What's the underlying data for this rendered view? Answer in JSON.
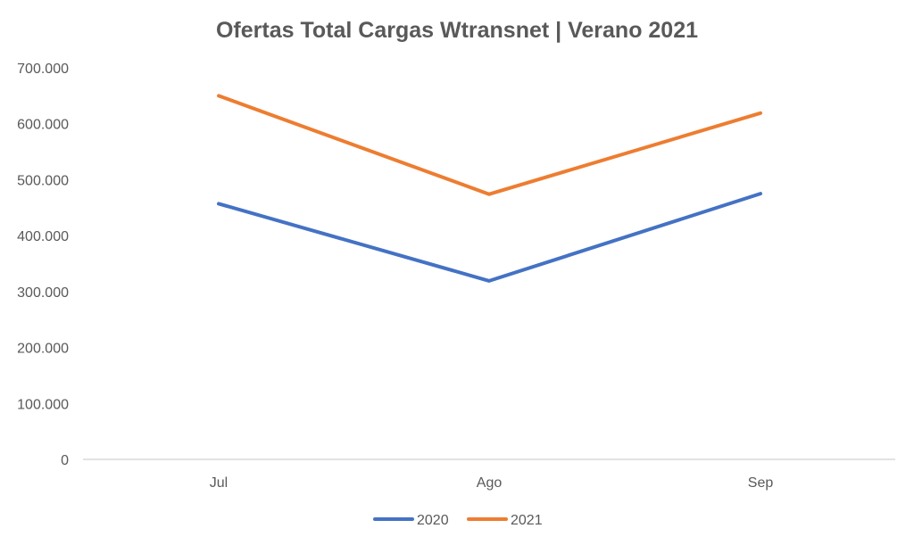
{
  "chart_data": {
    "type": "line",
    "title": "Ofertas Total Cargas Wtransnet | Verano 2021",
    "xlabel": "",
    "ylabel": "",
    "categories": [
      "Jul",
      "Ago",
      "Sep"
    ],
    "y_ticks": [
      {
        "value": 0,
        "label": "0"
      },
      {
        "value": 100000,
        "label": "100.000"
      },
      {
        "value": 200000,
        "label": "200.000"
      },
      {
        "value": 300000,
        "label": "300.000"
      },
      {
        "value": 400000,
        "label": "400.000"
      },
      {
        "value": 500000,
        "label": "500.000"
      },
      {
        "value": 600000,
        "label": "600.000"
      },
      {
        "value": 700000,
        "label": "700.000"
      }
    ],
    "ylim": [
      0,
      700000
    ],
    "grid": false,
    "legend_position": "bottom",
    "series": [
      {
        "name": "2020",
        "color": "#4472C4",
        "values": [
          457000,
          319000,
          475000
        ]
      },
      {
        "name": "2021",
        "color": "#ED7D31",
        "values": [
          650000,
          474000,
          619000
        ]
      }
    ]
  }
}
